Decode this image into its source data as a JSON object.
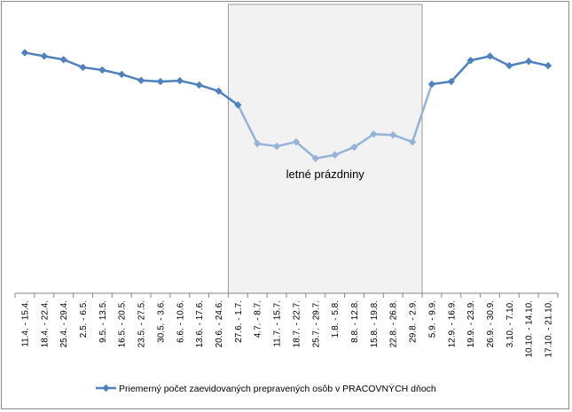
{
  "chart_data": {
    "type": "line",
    "title": "",
    "xlabel": "",
    "ylabel": "",
    "grid": false,
    "legend_position": "bottom",
    "y_axis_labels_shown": false,
    "ylim": [
      0,
      100
    ],
    "categories": [
      "11.4. - 15.4.",
      "18.4. - 22.4.",
      "25.4. - 29.4.",
      "2.5. - 6.5.",
      "9.5. - 13.5.",
      "16.5. - 20.5.",
      "23.5. - 27.5.",
      "30.5. - 3.6.",
      "6.6. - 10.6.",
      "13.6. - 17.6.",
      "20.6. - 24.6.",
      "27.6. - 1.7.",
      "4.7. - 8.7.",
      "11.7. - 15.7.",
      "18.7. - 22.7.",
      "25.7. - 29.7.",
      "1.8. - 5.8.",
      "8.8. - 12.8.",
      "15.8. - 19.8.",
      "22.8. - 26.8.",
      "29.8. - 2.9.",
      "5.9. - 9.9.",
      "12.9. - 16.9.",
      "19.9. - 23.9.",
      "26.9. - 30.9.",
      "3.10. - 7.10.",
      "10.10. - 14.10.",
      "17.10. - 21.10."
    ],
    "series": [
      {
        "name": "Priemerný počet zaevidovaných prepravených osôb v PRACOVNÝCH dňoch",
        "color": "#4f81bd",
        "holiday_segment_color": "#95b3d7",
        "values": [
          83.3,
          82.1,
          80.9,
          78.2,
          77.3,
          75.8,
          73.7,
          73.3,
          73.6,
          72.1,
          70.0,
          65.2,
          51.8,
          50.9,
          52.4,
          46.7,
          47.9,
          50.6,
          55.1,
          54.8,
          52.4,
          72.4,
          73.3,
          80.6,
          82.1,
          78.8,
          80.3,
          78.8
        ]
      }
    ],
    "annotations": [
      {
        "text": "letné prázdniny",
        "from_category": 11,
        "to_category": 20
      }
    ]
  }
}
